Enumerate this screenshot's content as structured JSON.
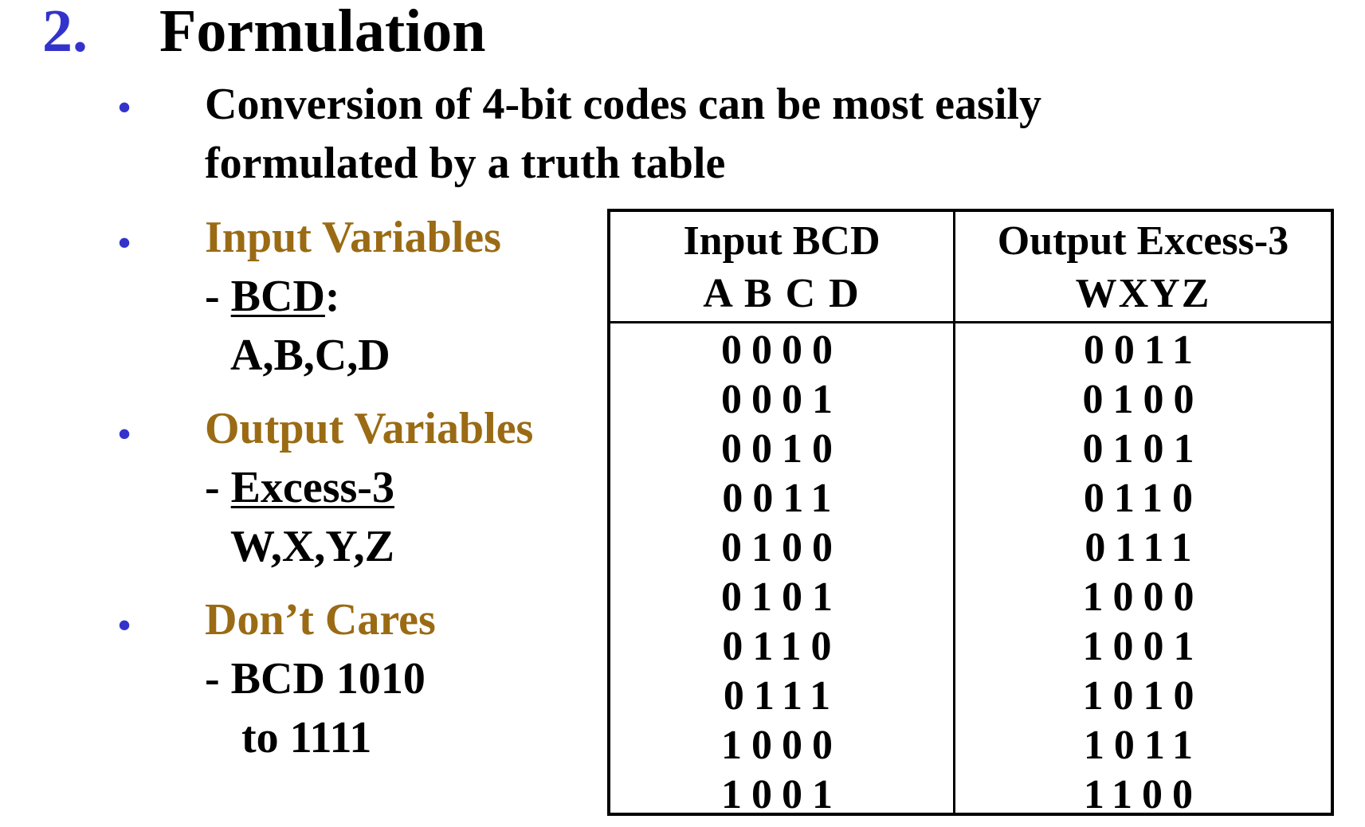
{
  "heading": {
    "number": "2.",
    "title": "Formulation"
  },
  "bullets": {
    "b1_line1": "Conversion of 4-bit codes can be most easily",
    "b1_line2": "formulated by a truth table",
    "b2_title": "Input Variables",
    "b2_dash": "- ",
    "b2_code": "BCD",
    "b2_colon": ":",
    "b2_vars": "A,B,C,D",
    "b3_title": "Output Variables",
    "b3_dash": "- ",
    "b3_code": "Excess-3",
    "b3_vars": "W,X,Y,Z",
    "b4_title": "Don’t Cares",
    "b4_line1": "- BCD 1010",
    "b4_line2": "to 1111"
  },
  "table": {
    "input_header": "Input BCD",
    "input_subheader": "A B C D",
    "output_header": "Output Excess-3",
    "output_subheader": "WXYZ",
    "input_rows": [
      "0000",
      "0001",
      "0010",
      "0011",
      "0100",
      "0101",
      "0110",
      "0111",
      "1000",
      "1001"
    ],
    "output_rows": [
      "0011",
      "0100",
      "0101",
      "0110",
      "0111",
      "1000",
      "1001",
      "1010",
      "1011",
      "1100"
    ]
  },
  "colors": {
    "accent_blue": "#3333cc",
    "accent_gold": "#9a6b14"
  }
}
